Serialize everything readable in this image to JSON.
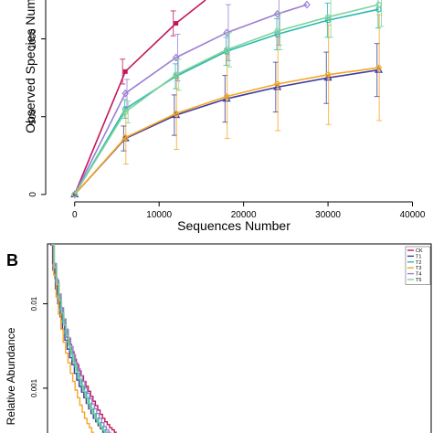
{
  "chart_data": [
    {
      "type": "line",
      "xlabel": "Sequences Number",
      "ylabel": "Observed Species Num",
      "xlim": [
        -3000,
        42000
      ],
      "ylim": [
        -30,
        1250
      ],
      "x_ticks": [
        "0",
        "10000",
        "20000",
        "30000",
        "40000"
      ],
      "y_ticks": [
        "0",
        "500",
        "1000"
      ],
      "grid": false,
      "series": [
        {
          "color": "#c2185b",
          "marker": "square",
          "points": [
            [
              0,
              0
            ],
            [
              6000,
              790
            ],
            [
              12000,
              1100
            ],
            [
              15500,
              1250
            ]
          ],
          "err": [
            0,
            80,
            80,
            0
          ]
        },
        {
          "color": "#3d3d9e",
          "marker": "triangle",
          "points": [
            [
              0,
              0
            ],
            [
              6000,
              360
            ],
            [
              12000,
              510
            ],
            [
              18000,
              615
            ],
            [
              24000,
              690
            ],
            [
              30000,
              750
            ],
            [
              36000,
              800
            ]
          ],
          "err": [
            0,
            80,
            130,
            150,
            160,
            165,
            170
          ]
        },
        {
          "color": "#29b8b0",
          "marker": "circle",
          "points": [
            [
              0,
              0
            ],
            [
              6000,
              550
            ],
            [
              12000,
              760
            ],
            [
              18000,
              920
            ],
            [
              24000,
              1030
            ],
            [
              30000,
              1120
            ],
            [
              36000,
              1190
            ]
          ],
          "err": [
            0,
            60,
            80,
            90,
            100,
            110,
            120
          ]
        },
        {
          "color": "#f5a623",
          "marker": "circle",
          "points": [
            [
              0,
              0
            ],
            [
              6000,
              365
            ],
            [
              12000,
              520
            ],
            [
              18000,
              630
            ],
            [
              24000,
              710
            ],
            [
              30000,
              770
            ],
            [
              36000,
              815
            ]
          ],
          "err": [
            0,
            170,
            230,
            270,
            300,
            320,
            340
          ]
        },
        {
          "color": "#9b7fd4",
          "marker": "diamond",
          "points": [
            [
              0,
              0
            ],
            [
              6000,
              650
            ],
            [
              12000,
              880
            ],
            [
              18000,
              1040
            ],
            [
              24000,
              1160
            ],
            [
              27500,
              1220
            ]
          ],
          "err": [
            0,
            90,
            150,
            180,
            200,
            0
          ]
        },
        {
          "color": "#7ed39a",
          "marker": "circle",
          "points": [
            [
              0,
              0
            ],
            [
              6000,
              530
            ],
            [
              12000,
              770
            ],
            [
              18000,
              930
            ],
            [
              24000,
              1050
            ],
            [
              30000,
              1140
            ],
            [
              36000,
              1220
            ]
          ],
          "err": [
            0,
            70,
            100,
            110,
            120,
            130,
            140
          ]
        }
      ]
    },
    {
      "type": "line",
      "panel_label": "B",
      "ylabel": "Relative Abundance",
      "y_ticks": [
        "0.01",
        "0.001"
      ],
      "y_tick_values": [
        0.01,
        0.001
      ],
      "ylim_log": [
        0.00028,
        0.05
      ],
      "xlim": [
        0,
        80
      ],
      "legend_position": "top-right",
      "series": [
        {
          "name": "CK",
          "color": "#c2185b",
          "values": [
            0.05,
            0.03,
            0.02,
            0.013,
            0.009,
            0.0065,
            0.005,
            0.004,
            0.0033,
            0.0027,
            0.0022,
            0.0019,
            0.0016,
            0.0014,
            0.0012,
            0.00105,
            0.00092,
            0.0008,
            0.0007,
            0.00062,
            0.00055,
            0.00049,
            0.00044,
            0.0004,
            0.00037,
            0.00034,
            0.00032,
            0.0003
          ]
        },
        {
          "name": "T1",
          "color": "#3d3d9e",
          "values": [
            0.05,
            0.025,
            0.015,
            0.01,
            0.007,
            0.005,
            0.0037,
            0.0029,
            0.0023,
            0.0019,
            0.0015,
            0.00125,
            0.00105,
            0.0009,
            0.00077,
            0.00066,
            0.00057,
            0.0005,
            0.00044,
            0.0004,
            0.00036,
            0.00033,
            0.0003
          ]
        },
        {
          "name": "T2",
          "color": "#29b8b0",
          "values": [
            0.05,
            0.028,
            0.018,
            0.012,
            0.0082,
            0.006,
            0.0045,
            0.0035,
            0.0028,
            0.0022,
            0.0018,
            0.0015,
            0.00125,
            0.00105,
            0.0009,
            0.00077,
            0.00066,
            0.00057,
            0.0005,
            0.00044,
            0.00039,
            0.00035,
            0.00032,
            0.0003
          ]
        },
        {
          "name": "T3",
          "color": "#f5a623",
          "values": [
            0.05,
            0.022,
            0.012,
            0.0075,
            0.005,
            0.0035,
            0.0026,
            0.002,
            0.0015,
            0.0012,
            0.00095,
            0.00077,
            0.00063,
            0.00052,
            0.00044,
            0.00038,
            0.00034,
            0.0003
          ]
        },
        {
          "name": "T4",
          "color": "#9b7fd4",
          "values": [
            0.05,
            0.03,
            0.019,
            0.013,
            0.009,
            0.0066,
            0.005,
            0.0039,
            0.0031,
            0.0025,
            0.002,
            0.0017,
            0.0014,
            0.0012,
            0.001,
            0.00087,
            0.00075,
            0.00065,
            0.00057,
            0.0005,
            0.00044,
            0.00039,
            0.00035,
            0.00032,
            0.0003
          ]
        },
        {
          "name": "T5",
          "color": "#7ed39a",
          "values": [
            0.05,
            0.027,
            0.017,
            0.011,
            0.0078,
            0.0056,
            0.0042,
            0.0032,
            0.0025,
            0.002,
            0.0016,
            0.0013,
            0.0011,
            0.00092,
            0.00078,
            0.00066,
            0.00057,
            0.0005,
            0.00044,
            0.00039,
            0.00035,
            0.00032,
            0.0003
          ]
        }
      ]
    }
  ]
}
